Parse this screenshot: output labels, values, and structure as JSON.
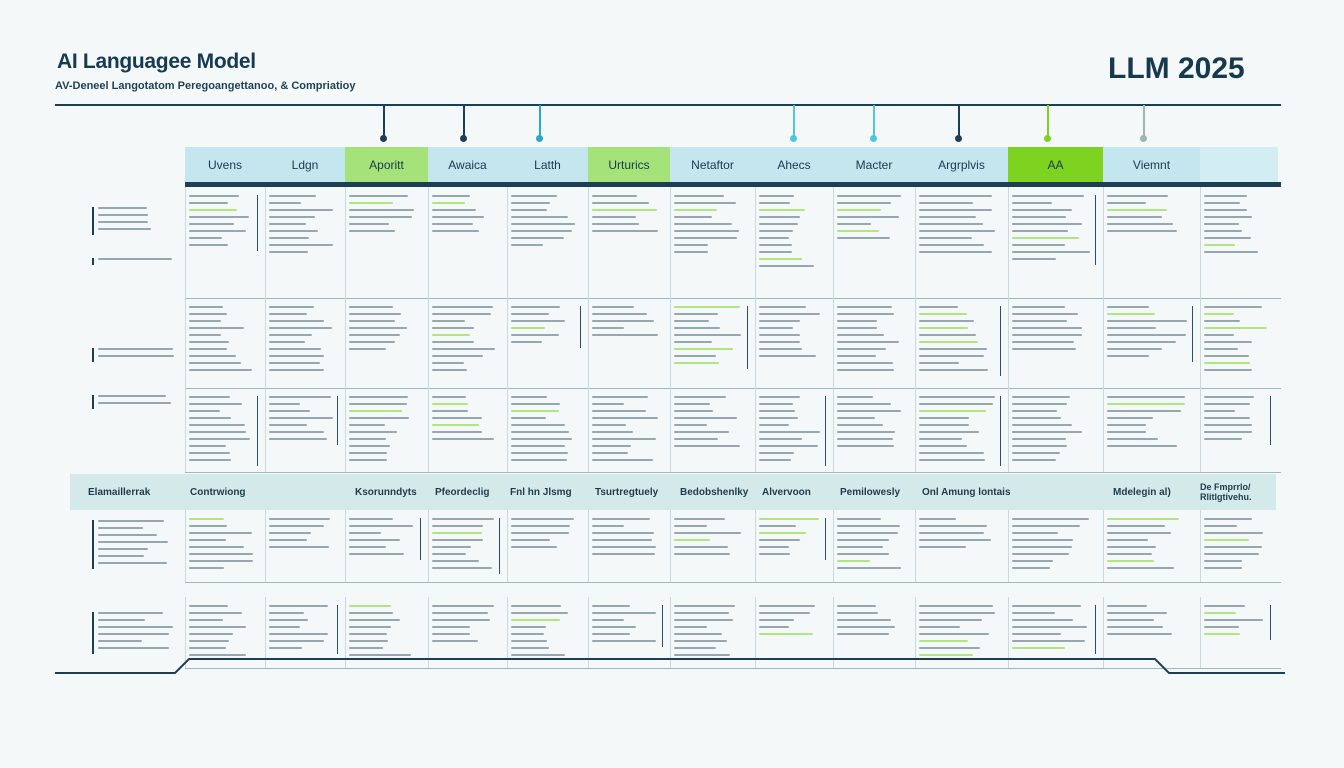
{
  "header": {
    "title": "AI Languagee Model",
    "subtitle": "AV-Deneel Langotatom Peregoangettanoo, & Compriatioy",
    "badge": "LLM 2025"
  },
  "columns": [
    {
      "label": "Uvens",
      "color": "#c3e6ef"
    },
    {
      "label": "Ldgn",
      "color": "#c3e6ef"
    },
    {
      "label": "Aporitt",
      "color": "#a5e27a"
    },
    {
      "label": "Awaica",
      "color": "#c3e6ef"
    },
    {
      "label": "Latth",
      "color": "#c3e6ef"
    },
    {
      "label": "Urturics",
      "color": "#a5e27a"
    },
    {
      "label": "Netaftor",
      "color": "#c3e6ef"
    },
    {
      "label": "Ahecs",
      "color": "#c3e6ef"
    },
    {
      "label": "Macter",
      "color": "#c3e6ef"
    },
    {
      "label": "Argrplvis",
      "color": "#c3e6ef"
    },
    {
      "label": "AA",
      "color": "#7ed321"
    },
    {
      "label": "Viemnt",
      "color": "#c3e6ef"
    },
    {
      "label": "",
      "color": "#d3eef3"
    }
  ],
  "section_row": {
    "labels": [
      "Elamaillerrak",
      "Contrwiong",
      "Ksorunndyts",
      "Pfeordeclig",
      "Fnl hn Jlsmg",
      "Tsurtregtuely",
      "Bedobshenlky",
      "Alvervoon",
      "Pemilowesly",
      "Onl Amung lontais",
      "Mdelegin al)",
      "De Fmprrlo/ Rlitlgtivehu."
    ]
  },
  "colors": {
    "accent_dark": "#1c3f55",
    "accent_green": "#7ed321",
    "accent_cyan": "#2aa7c9"
  }
}
